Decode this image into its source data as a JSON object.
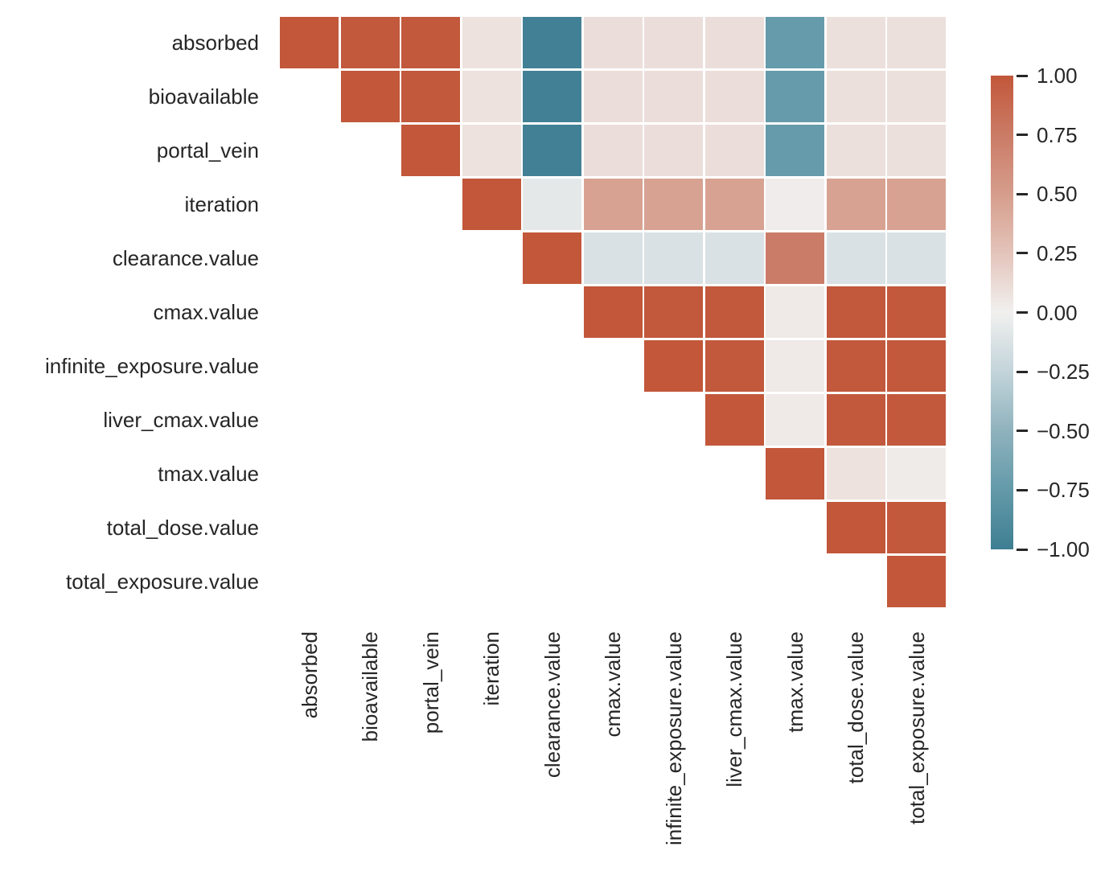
{
  "chart_data": {
    "type": "heatmap",
    "subtype": "correlation-matrix-upper-triangle",
    "variables": [
      "absorbed",
      "bioavailable",
      "portal_vein",
      "iteration",
      "clearance.value",
      "cmax.value",
      "infinite_exposure.value",
      "liver_cmax.value",
      "tmax.value",
      "total_dose.value",
      "total_exposure.value"
    ],
    "matrix": [
      [
        1.0,
        0.99,
        0.99,
        0.08,
        -0.97,
        0.1,
        0.1,
        0.1,
        -0.74,
        0.09,
        0.09
      ],
      [
        null,
        1.0,
        0.99,
        0.08,
        -0.97,
        0.1,
        0.1,
        0.1,
        -0.74,
        0.09,
        0.09
      ],
      [
        null,
        null,
        1.0,
        0.08,
        -0.97,
        0.1,
        0.1,
        0.1,
        -0.74,
        0.09,
        0.09
      ],
      [
        null,
        null,
        null,
        1.0,
        -0.07,
        0.47,
        0.47,
        0.47,
        0.02,
        0.47,
        0.47
      ],
      [
        null,
        null,
        null,
        null,
        1.0,
        -0.13,
        -0.13,
        -0.13,
        0.74,
        -0.13,
        -0.13
      ],
      [
        null,
        null,
        null,
        null,
        null,
        1.0,
        0.99,
        0.99,
        0.04,
        0.99,
        0.99
      ],
      [
        null,
        null,
        null,
        null,
        null,
        null,
        1.0,
        0.99,
        0.04,
        0.99,
        0.99
      ],
      [
        null,
        null,
        null,
        null,
        null,
        null,
        null,
        1.0,
        0.04,
        0.99,
        0.99
      ],
      [
        null,
        null,
        null,
        null,
        null,
        null,
        null,
        null,
        1.0,
        0.08,
        0.03
      ],
      [
        null,
        null,
        null,
        null,
        null,
        null,
        null,
        null,
        null,
        1.0,
        0.99
      ],
      [
        null,
        null,
        null,
        null,
        null,
        null,
        null,
        null,
        null,
        null,
        1.0
      ]
    ],
    "colorbar": {
      "min": -1,
      "max": 1,
      "position": "right",
      "tick_values": [
        1.0,
        0.75,
        0.5,
        0.25,
        0.0,
        -0.25,
        -0.5,
        -0.75,
        -1.0
      ],
      "tick_labels": [
        "1.00",
        "0.75",
        "0.50",
        "0.25",
        "0.00",
        "−0.25",
        "−0.50",
        "−0.75",
        "−1.00"
      ]
    },
    "palette_stops": [
      {
        "v": -1.0,
        "c": "#3e7e92"
      },
      {
        "v": -0.75,
        "c": "#639aa9"
      },
      {
        "v": -0.5,
        "c": "#8fb2bd"
      },
      {
        "v": -0.25,
        "c": "#c3d4da"
      },
      {
        "v": 0.0,
        "c": "#f1f0ef"
      },
      {
        "v": 0.25,
        "c": "#e3c4ba"
      },
      {
        "v": 0.5,
        "c": "#d69d8c"
      },
      {
        "v": 0.75,
        "c": "#cb7b66"
      },
      {
        "v": 1.0,
        "c": "#c2573a"
      }
    ],
    "grid": "off",
    "legend": "colorbar-right",
    "title": "",
    "xlabel": "",
    "ylabel": ""
  },
  "colors": {
    "background": "#ffffff",
    "text": "#262626",
    "cell_gap": "#ffffff",
    "positive_max": "#c2573a",
    "negative_max": "#3e7e92",
    "midpoint": "#f1f0ef"
  }
}
